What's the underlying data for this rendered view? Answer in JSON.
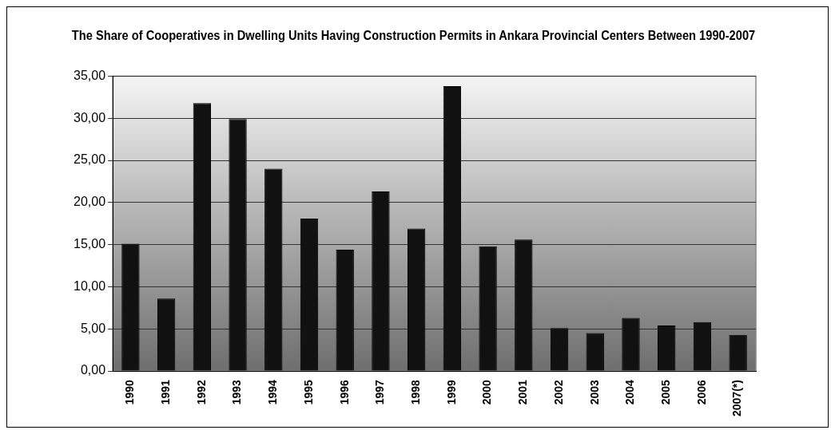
{
  "chart_data": {
    "type": "bar",
    "title": "The Share of Cooperatives in Dwelling Units Having Construction Permits in Ankara Provincial Centers Between 1990-2007",
    "categories": [
      "1990",
      "1991",
      "1992",
      "1993",
      "1994",
      "1995",
      "1996",
      "1997",
      "1998",
      "1999",
      "2000",
      "2001",
      "2002",
      "2003",
      "2004",
      "2005",
      "2006",
      "2007(*)"
    ],
    "values": [
      15.1,
      8.6,
      31.8,
      29.9,
      24.0,
      18.1,
      14.4,
      21.3,
      16.9,
      33.8,
      14.8,
      15.6,
      5.1,
      4.5,
      6.3,
      5.4,
      5.8,
      4.3
    ],
    "color": "#111111",
    "ylim": [
      0,
      35
    ],
    "yticks": [
      {
        "value": 0,
        "label": "0,00"
      },
      {
        "value": 5,
        "label": "5,00"
      },
      {
        "value": 10,
        "label": "10,00"
      },
      {
        "value": 15,
        "label": "15,00"
      },
      {
        "value": 20,
        "label": "20,00"
      },
      {
        "value": 25,
        "label": "25,00"
      },
      {
        "value": 30,
        "label": "30,00"
      },
      {
        "value": 35,
        "label": "35,00"
      }
    ],
    "grid": "y",
    "legend": false
  }
}
